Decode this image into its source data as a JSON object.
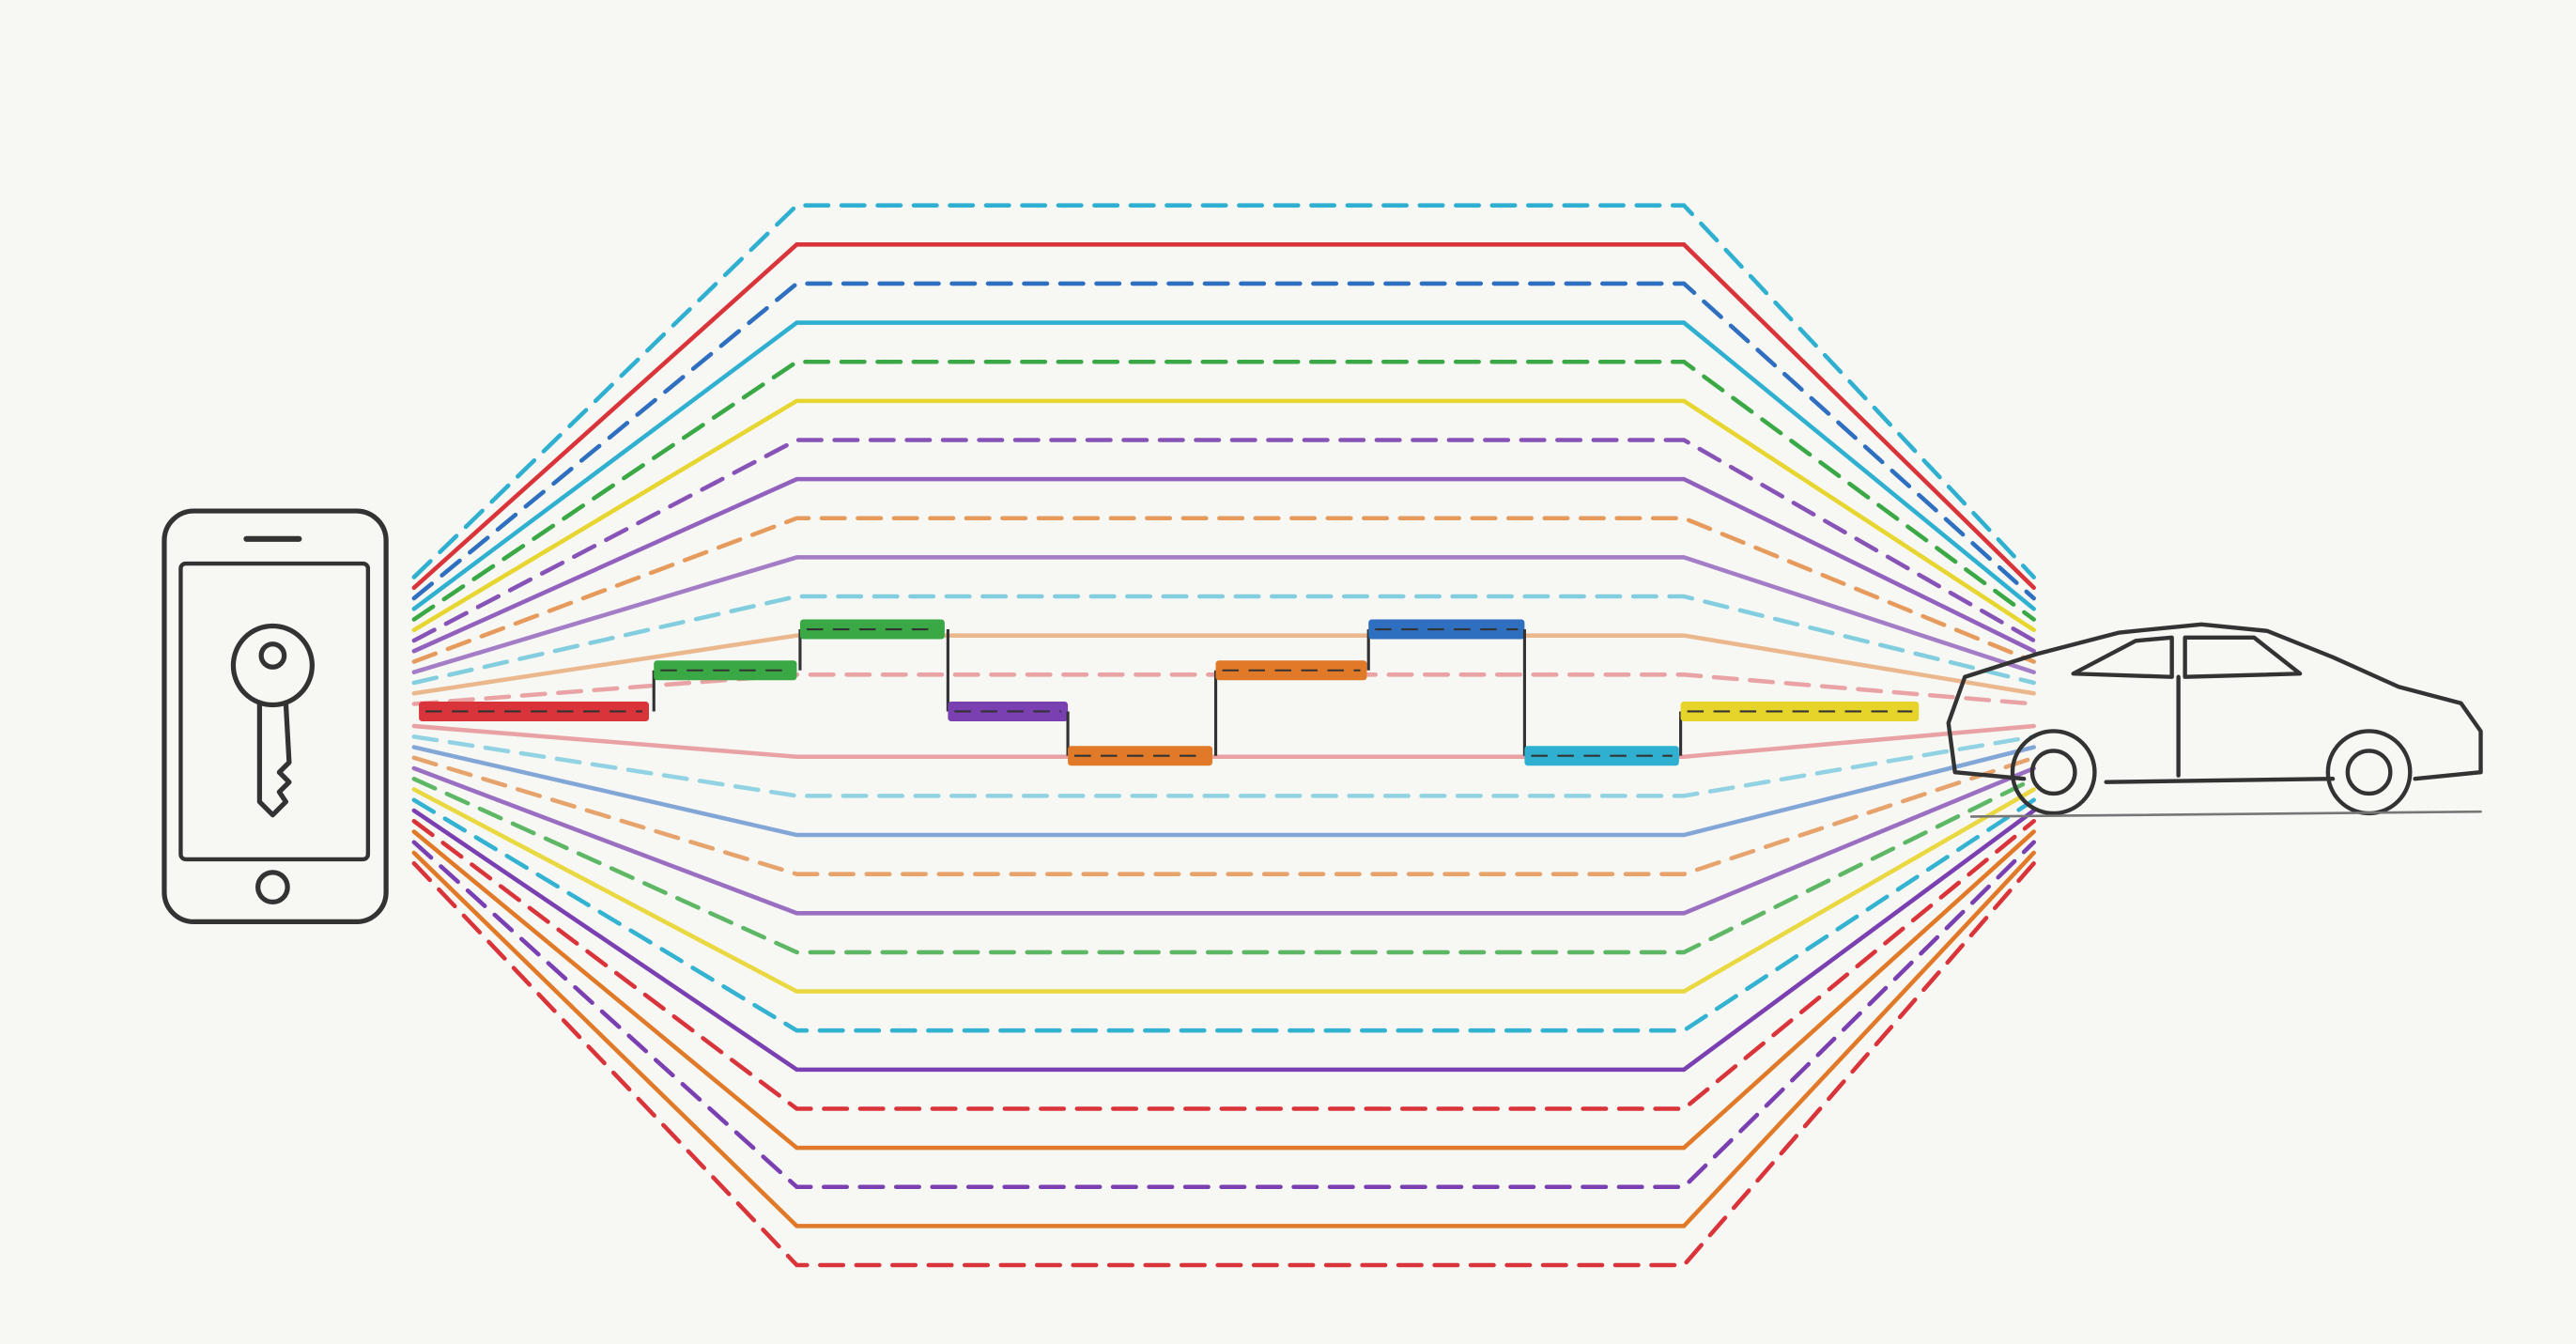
{
  "illustration": {
    "background": "#f7f7f4",
    "ink": "#333333",
    "palette": {
      "red": "#d8343a",
      "blue": "#2f6fc0",
      "cyan": "#2fb0d0",
      "green": "#3aa845",
      "yellow": "#e6d42a",
      "purple": "#7a3fb0",
      "orange": "#e07a28"
    },
    "fan_channels_upper": [
      "cyan",
      "red",
      "blue",
      "cyan",
      "green",
      "yellow",
      "purple",
      "purple",
      "orange",
      "purple",
      "cyan",
      "orange",
      "red"
    ],
    "fan_channels_lower": [
      "red",
      "orange",
      "purple",
      "orange",
      "red",
      "purple",
      "cyan",
      "yellow",
      "green",
      "purple",
      "orange",
      "blue",
      "cyan",
      "red"
    ],
    "hop_sequence": [
      {
        "color": "red",
        "channel": 0
      },
      {
        "color": "green",
        "channel": 1
      },
      {
        "color": "green",
        "channel": 2
      },
      {
        "color": "purple",
        "channel": 0
      },
      {
        "color": "orange",
        "channel": -1
      },
      {
        "color": "orange",
        "channel": 1
      },
      {
        "color": "blue",
        "channel": 2
      },
      {
        "color": "cyan",
        "channel": -1
      },
      {
        "color": "yellow",
        "channel": 0
      }
    ],
    "sender": "phone-with-key-icon",
    "receiver": "car-icon"
  }
}
